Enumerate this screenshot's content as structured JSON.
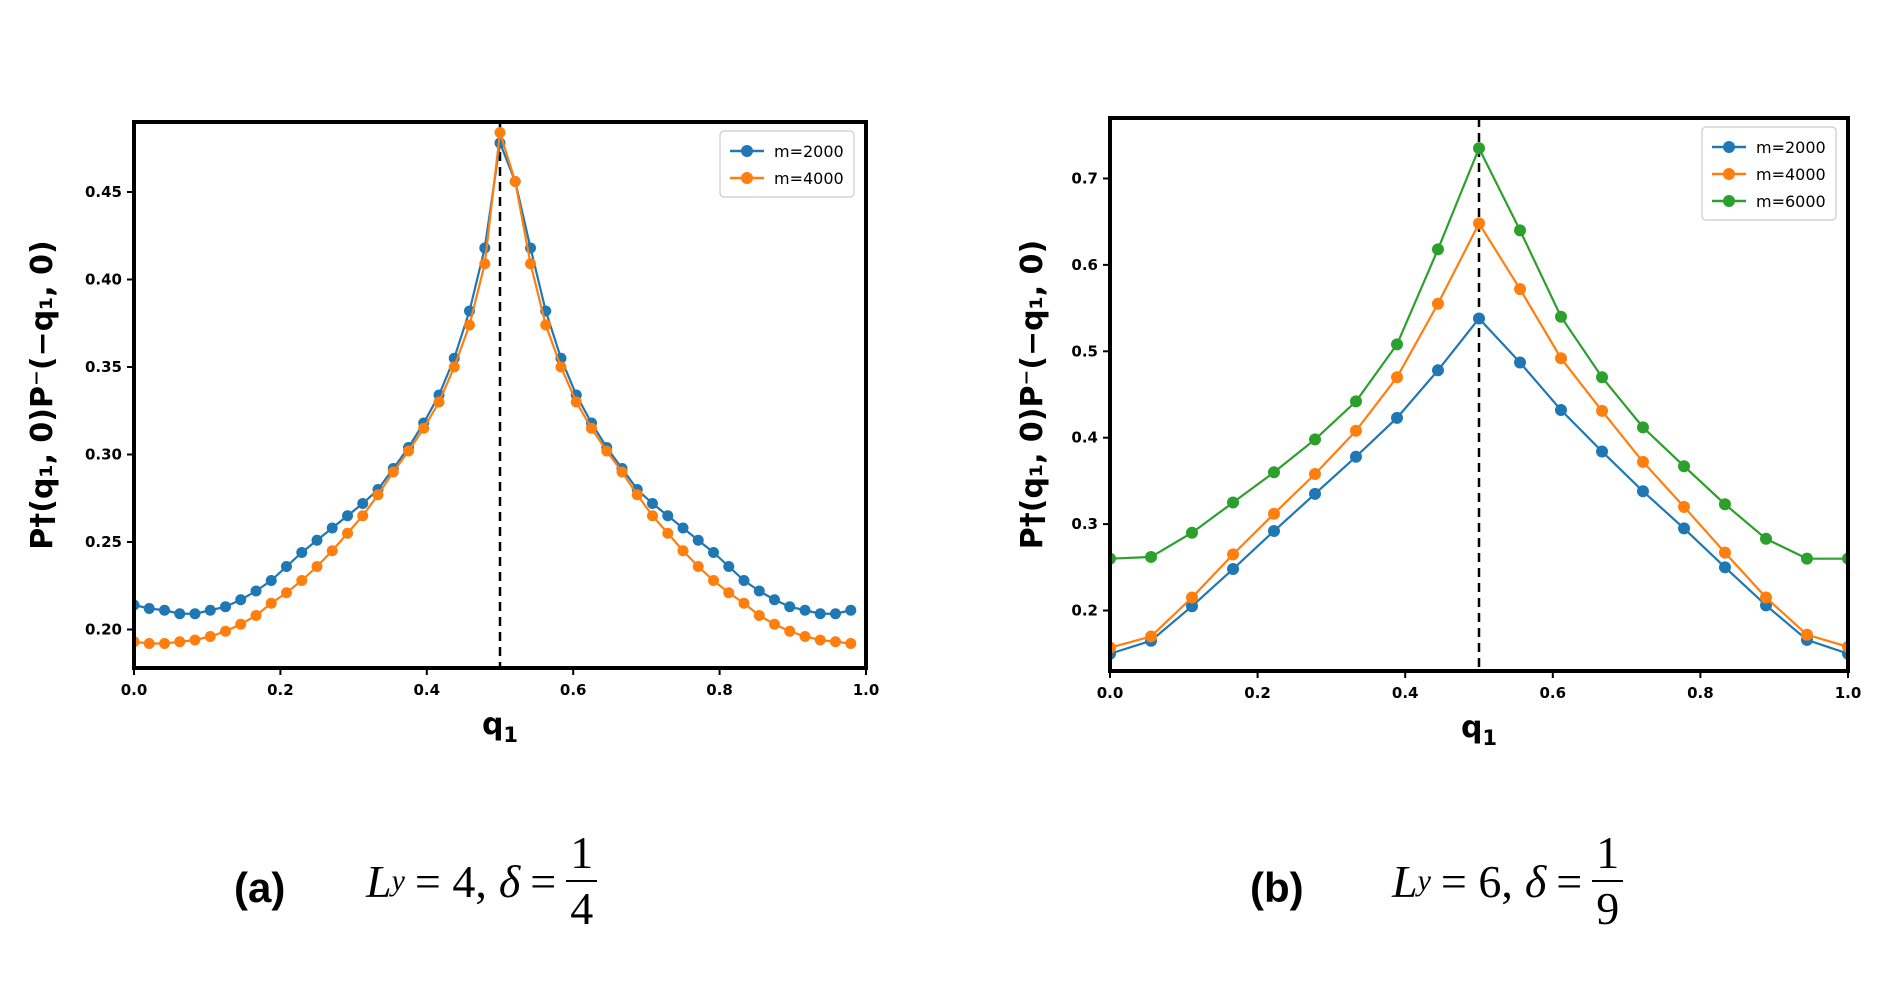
{
  "chart_data": [
    {
      "type": "line",
      "panel_label": "(a)",
      "caption": {
        "L_symbol": "L",
        "L_sub": "y",
        "L_value": "= 4,",
        "delta_symbol": "δ",
        "delta_eq": "=",
        "delta_num": "1",
        "delta_den": "4"
      },
      "xlabel_main": "q",
      "xlabel_sub": "1",
      "ylabel": "P†(q₁, 0)P⁻(−q₁, 0)",
      "xlim": [
        0.0,
        1.0
      ],
      "ylim": [
        0.178,
        0.49
      ],
      "xticks": [
        0.0,
        0.2,
        0.4,
        0.6,
        0.8,
        1.0
      ],
      "xtick_labels": [
        "0.0",
        "0.2",
        "0.4",
        "0.6",
        "0.8",
        "1.0"
      ],
      "yticks": [
        0.2,
        0.25,
        0.3,
        0.35,
        0.4,
        0.45
      ],
      "ytick_labels": [
        "0.20",
        "0.25",
        "0.30",
        "0.35",
        "0.40",
        "0.45"
      ],
      "vline_x": 0.5,
      "legend_position": "top-right",
      "series": [
        {
          "name": "m=2000",
          "color": "#1f77b4",
          "x": [
            0.0,
            0.0208,
            0.0417,
            0.0625,
            0.0833,
            0.1042,
            0.125,
            0.1458,
            0.1667,
            0.1875,
            0.2083,
            0.2292,
            0.25,
            0.2708,
            0.2917,
            0.3125,
            0.3333,
            0.3542,
            0.375,
            0.3958,
            0.4167,
            0.4375,
            0.4583,
            0.4792,
            0.5,
            0.5208,
            0.5417,
            0.5625,
            0.5833,
            0.6042,
            0.625,
            0.6458,
            0.6667,
            0.6875,
            0.7083,
            0.7292,
            0.75,
            0.7708,
            0.7917,
            0.8125,
            0.8333,
            0.8542,
            0.875,
            0.8958,
            0.9167,
            0.9375,
            0.9583,
            0.9792
          ],
          "values": [
            0.214,
            0.212,
            0.211,
            0.209,
            0.209,
            0.211,
            0.213,
            0.217,
            0.222,
            0.228,
            0.236,
            0.244,
            0.251,
            0.258,
            0.265,
            0.272,
            0.28,
            0.292,
            0.304,
            0.318,
            0.334,
            0.355,
            0.382,
            0.418,
            0.478,
            0.456,
            0.418,
            0.382,
            0.355,
            0.334,
            0.318,
            0.304,
            0.292,
            0.28,
            0.272,
            0.265,
            0.258,
            0.251,
            0.244,
            0.236,
            0.228,
            0.222,
            0.217,
            0.213,
            0.211,
            0.209,
            0.209,
            0.211
          ]
        },
        {
          "name": "m=4000",
          "color": "#ff7f0e",
          "x": [
            0.0,
            0.0208,
            0.0417,
            0.0625,
            0.0833,
            0.1042,
            0.125,
            0.1458,
            0.1667,
            0.1875,
            0.2083,
            0.2292,
            0.25,
            0.2708,
            0.2917,
            0.3125,
            0.3333,
            0.3542,
            0.375,
            0.3958,
            0.4167,
            0.4375,
            0.4583,
            0.4792,
            0.5,
            0.5208,
            0.5417,
            0.5625,
            0.5833,
            0.6042,
            0.625,
            0.6458,
            0.6667,
            0.6875,
            0.7083,
            0.7292,
            0.75,
            0.7708,
            0.7917,
            0.8125,
            0.8333,
            0.8542,
            0.875,
            0.8958,
            0.9167,
            0.9375,
            0.9583,
            0.9792
          ],
          "values": [
            0.193,
            0.192,
            0.192,
            0.193,
            0.194,
            0.196,
            0.199,
            0.203,
            0.208,
            0.215,
            0.221,
            0.228,
            0.236,
            0.245,
            0.255,
            0.265,
            0.277,
            0.29,
            0.302,
            0.315,
            0.33,
            0.35,
            0.374,
            0.409,
            0.484,
            0.456,
            0.409,
            0.374,
            0.35,
            0.33,
            0.315,
            0.302,
            0.29,
            0.277,
            0.265,
            0.255,
            0.245,
            0.236,
            0.228,
            0.221,
            0.215,
            0.208,
            0.203,
            0.199,
            0.196,
            0.194,
            0.193,
            0.192
          ]
        }
      ]
    },
    {
      "type": "line",
      "panel_label": "(b)",
      "caption": {
        "L_symbol": "L",
        "L_sub": "y",
        "L_value": "= 6,",
        "delta_symbol": "δ",
        "delta_eq": "=",
        "delta_num": "1",
        "delta_den": "9"
      },
      "xlabel_main": "q",
      "xlabel_sub": "1",
      "ylabel": "P†(q₁, 0)P⁻(−q₁, 0)",
      "xlim": [
        0.0,
        1.0
      ],
      "ylim": [
        0.13,
        0.77
      ],
      "xticks": [
        0.0,
        0.2,
        0.4,
        0.6,
        0.8,
        1.0
      ],
      "xtick_labels": [
        "0.0",
        "0.2",
        "0.4",
        "0.6",
        "0.8",
        "1.0"
      ],
      "yticks": [
        0.2,
        0.3,
        0.4,
        0.5,
        0.6,
        0.7
      ],
      "ytick_labels": [
        "0.2",
        "0.3",
        "0.4",
        "0.5",
        "0.6",
        "0.7"
      ],
      "vline_x": 0.5,
      "legend_position": "top-right",
      "series": [
        {
          "name": "m=2000",
          "color": "#1f77b4",
          "x": [
            0.0,
            0.0556,
            0.1111,
            0.1667,
            0.2222,
            0.2778,
            0.3333,
            0.3889,
            0.4444,
            0.5,
            0.5556,
            0.6111,
            0.6667,
            0.7222,
            0.7778,
            0.8333,
            0.8889,
            0.9444,
            1.0
          ],
          "values": [
            0.15,
            0.165,
            0.205,
            0.248,
            0.292,
            0.335,
            0.378,
            0.423,
            0.478,
            0.538,
            0.487,
            0.432,
            0.384,
            0.338,
            0.295,
            0.25,
            0.206,
            0.166,
            0.15
          ]
        },
        {
          "name": "m=4000",
          "color": "#ff7f0e",
          "x": [
            0.0,
            0.0556,
            0.1111,
            0.1667,
            0.2222,
            0.2778,
            0.3333,
            0.3889,
            0.4444,
            0.5,
            0.5556,
            0.6111,
            0.6667,
            0.7222,
            0.7778,
            0.8333,
            0.8889,
            0.9444,
            1.0
          ],
          "values": [
            0.157,
            0.17,
            0.215,
            0.265,
            0.312,
            0.358,
            0.408,
            0.47,
            0.555,
            0.648,
            0.572,
            0.492,
            0.431,
            0.372,
            0.32,
            0.267,
            0.215,
            0.172,
            0.158
          ]
        },
        {
          "name": "m=6000",
          "color": "#2ca02c",
          "x": [
            0.0,
            0.0556,
            0.1111,
            0.1667,
            0.2222,
            0.2778,
            0.3333,
            0.3889,
            0.4444,
            0.5,
            0.5556,
            0.6111,
            0.6667,
            0.7222,
            0.7778,
            0.8333,
            0.8889,
            0.9444,
            1.0
          ],
          "values": [
            0.26,
            0.262,
            0.29,
            0.325,
            0.36,
            0.398,
            0.442,
            0.508,
            0.618,
            0.735,
            0.64,
            0.54,
            0.47,
            0.412,
            0.367,
            0.323,
            0.283,
            0.26,
            0.26
          ]
        }
      ]
    }
  ]
}
